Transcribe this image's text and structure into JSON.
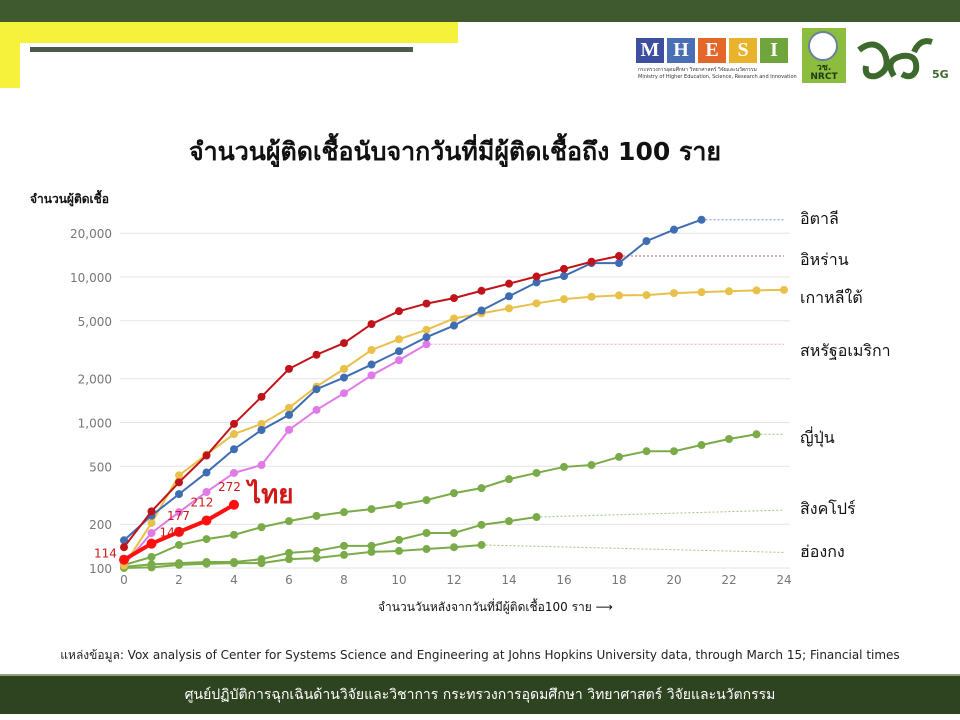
{
  "header": {
    "logo_mhesi_letters": [
      "M",
      "H",
      "E",
      "S",
      "I"
    ],
    "logo_mhesi_colors": [
      "#3d4f9e",
      "#4a6fb5",
      "#e3672a",
      "#e8b32a",
      "#6fa53c"
    ],
    "logo_mhesi_subtitle_th": "กระทรวงการอุดมศึกษา วิทยาศาสตร์ วิจัยและนวัตกรรม",
    "logo_mhesi_subtitle_en": "Ministry of Higher Education, Science, Research and Innovation",
    "logo_nrct_text": "วช. NRCT",
    "logo_5g_text": "5G"
  },
  "chart_data": {
    "type": "line",
    "title": "จำนวนผู้ติดเชื้อนับจากวันที่มีผู้ติดเชื้อถึง 100 ราย",
    "ylabel": "จำนวนผู้ติดเชื้อ",
    "xlabel": "จำนวนวันหลังจากวันที่มีผู้ติดเชื้อ100 ราย",
    "xlim": [
      0,
      24
    ],
    "x_ticks": [
      "0",
      "2",
      "4",
      "6",
      "8",
      "10",
      "12",
      "14",
      "16",
      "18",
      "20",
      "22",
      "24"
    ],
    "y_scale": "log",
    "ylim": [
      100,
      30000
    ],
    "y_ticks": [
      100,
      200,
      500,
      1000,
      2000,
      5000,
      10000,
      20000
    ],
    "y_tick_labels": [
      "100",
      "200",
      "500",
      "1,000",
      "2,000",
      "5,000",
      "10,000",
      "20,000"
    ],
    "grid": "horizontal",
    "legend": "direct labels right",
    "series": [
      {
        "name": "อิตาลี",
        "color": "#3f6db3",
        "values": [
          155,
          229,
          322,
          453,
          655,
          888,
          1128,
          1694,
          2036,
          2502,
          3089,
          3858,
          4636,
          5883,
          7375,
          9172,
          10149,
          12462,
          12462,
          17660,
          21157,
          24747
        ],
        "trend_end": 24747
      },
      {
        "name": "อิหร่าน",
        "color": "#c0141a",
        "values": [
          139,
          245,
          388,
          593,
          978,
          1501,
          2336,
          2922,
          3513,
          4747,
          5823,
          6566,
          7161,
          8042,
          9000,
          10075,
          11364,
          12729,
          13938
        ],
        "trend_end": 13938
      },
      {
        "name": "เกาหลีใต้",
        "color": "#e8c04a",
        "values": [
          104,
          204,
          433,
          602,
          833,
          977,
          1261,
          1766,
          2337,
          3150,
          3736,
          4335,
          5186,
          5621,
          6088,
          6593,
          7041,
          7314,
          7478,
          7513,
          7755,
          7869,
          7979,
          8086,
          8162
        ]
      },
      {
        "name": "สหรัฐอเมริกา",
        "color": "#e07ae6",
        "values": [
          105,
          174,
          242,
          333,
          450,
          510,
          890,
          1220,
          1590,
          2110,
          2680,
          3450
        ],
        "trend_end": 3450
      },
      {
        "name": "ญี่ปุ่น",
        "color": "#7aab48",
        "values": [
          105,
          119,
          144,
          158,
          169,
          191,
          210,
          228,
          242,
          254,
          271,
          293,
          327,
          354,
          408,
          450,
          495,
          510,
          580,
          635,
          635,
          700,
          770,
          830
        ],
        "trend_end": 830
      },
      {
        "name": "สิงคโปร์",
        "color": "#7aab48",
        "values": [
          102,
          106,
          108,
          110,
          110,
          115,
          127,
          131,
          142,
          142,
          156,
          174,
          174,
          198,
          210,
          224
        ],
        "trend_end": 250
      },
      {
        "name": "ฮ่องกง",
        "color": "#7aab48",
        "values": [
          100,
          101,
          105,
          107,
          108,
          108,
          115,
          117,
          123,
          129,
          131,
          135,
          139,
          144
        ],
        "trend_end": 128
      },
      {
        "name": "ไทย",
        "color": "#ff1010",
        "values": [
          114,
          147,
          177,
          212,
          272
        ],
        "data_labels": [
          "114",
          "147",
          "177",
          "212",
          "272"
        ]
      }
    ]
  },
  "source": "แหล่งข้อมูล: Vox analysis of Center for Systems Science and Engineering at Johns Hopkins University data, through March 15; Financial times",
  "footer": "ศูนย์ปฏิบัติการฉุกเฉินด้านวิจัยและวิชาการ กระทรวงการอุดมศึกษา วิทยาศาสตร์ วิจัยและนวัตกรรม"
}
